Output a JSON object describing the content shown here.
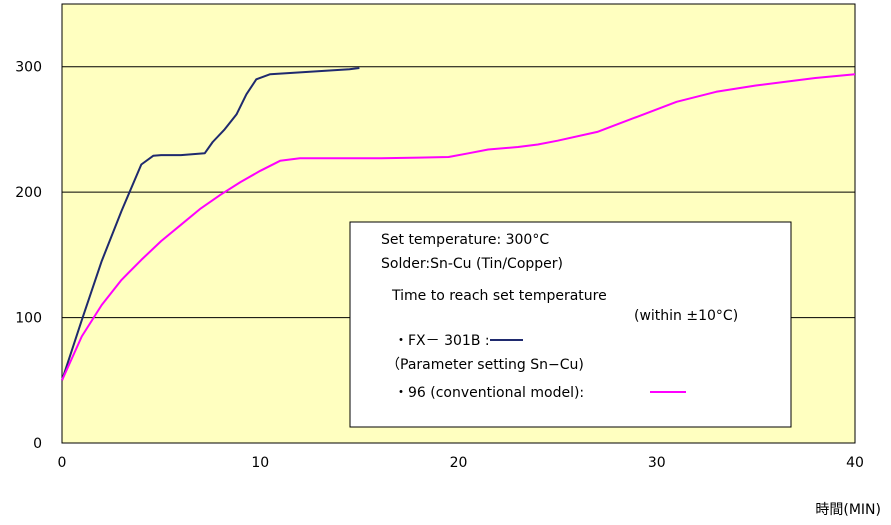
{
  "chart_data": {
    "type": "line",
    "xlim": [
      0,
      40
    ],
    "ylim": [
      0,
      350
    ],
    "xticks": [
      0,
      10,
      20,
      30,
      40
    ],
    "yticks": [
      0,
      100,
      200,
      300
    ],
    "xunit_label": "時間(MIN)",
    "grid": {
      "horizontal": true,
      "vertical": false
    },
    "plot_background": "#ffffc0",
    "series": [
      {
        "name": "FX－301B",
        "color": "#1f2a6e",
        "x": [
          0,
          1,
          2,
          3,
          4,
          4.6,
          5,
          6,
          7.2,
          7.6,
          8.2,
          8.8,
          9.3,
          9.8,
          10.5,
          11.5,
          12.5,
          13.5,
          14.5,
          15
        ],
        "y": [
          50,
          98,
          145,
          185,
          222,
          229,
          229.5,
          229.5,
          231,
          240,
          250,
          262,
          278,
          290,
          294,
          295,
          296,
          297,
          298,
          299
        ]
      },
      {
        "name": "96 (conventional model)",
        "color": "#ff00ff",
        "x": [
          0,
          1,
          2,
          3,
          4,
          5,
          6,
          7,
          8,
          9,
          10,
          11,
          12,
          14,
          16,
          18,
          19.5,
          20.5,
          21.5,
          23,
          24,
          25,
          27,
          29,
          31,
          33,
          35,
          37,
          38,
          40
        ],
        "y": [
          50,
          85,
          110,
          130,
          146,
          161,
          174,
          187,
          198,
          208,
          217,
          225,
          227,
          227,
          227,
          227.5,
          228,
          231,
          234,
          236,
          238,
          241,
          248,
          260,
          272,
          280,
          285,
          289,
          291,
          294
        ]
      }
    ],
    "legend": {
      "lines": [
        "Set temperature: 300°C",
        "Solder:Sn-Cu (Tin/Copper)",
        "Time to reach set temperature",
        "(within ±10°C)",
        "・FX－ 301B :",
        "（Parameter setting Sn−Cu)",
        "・96 (conventional model):"
      ]
    }
  }
}
